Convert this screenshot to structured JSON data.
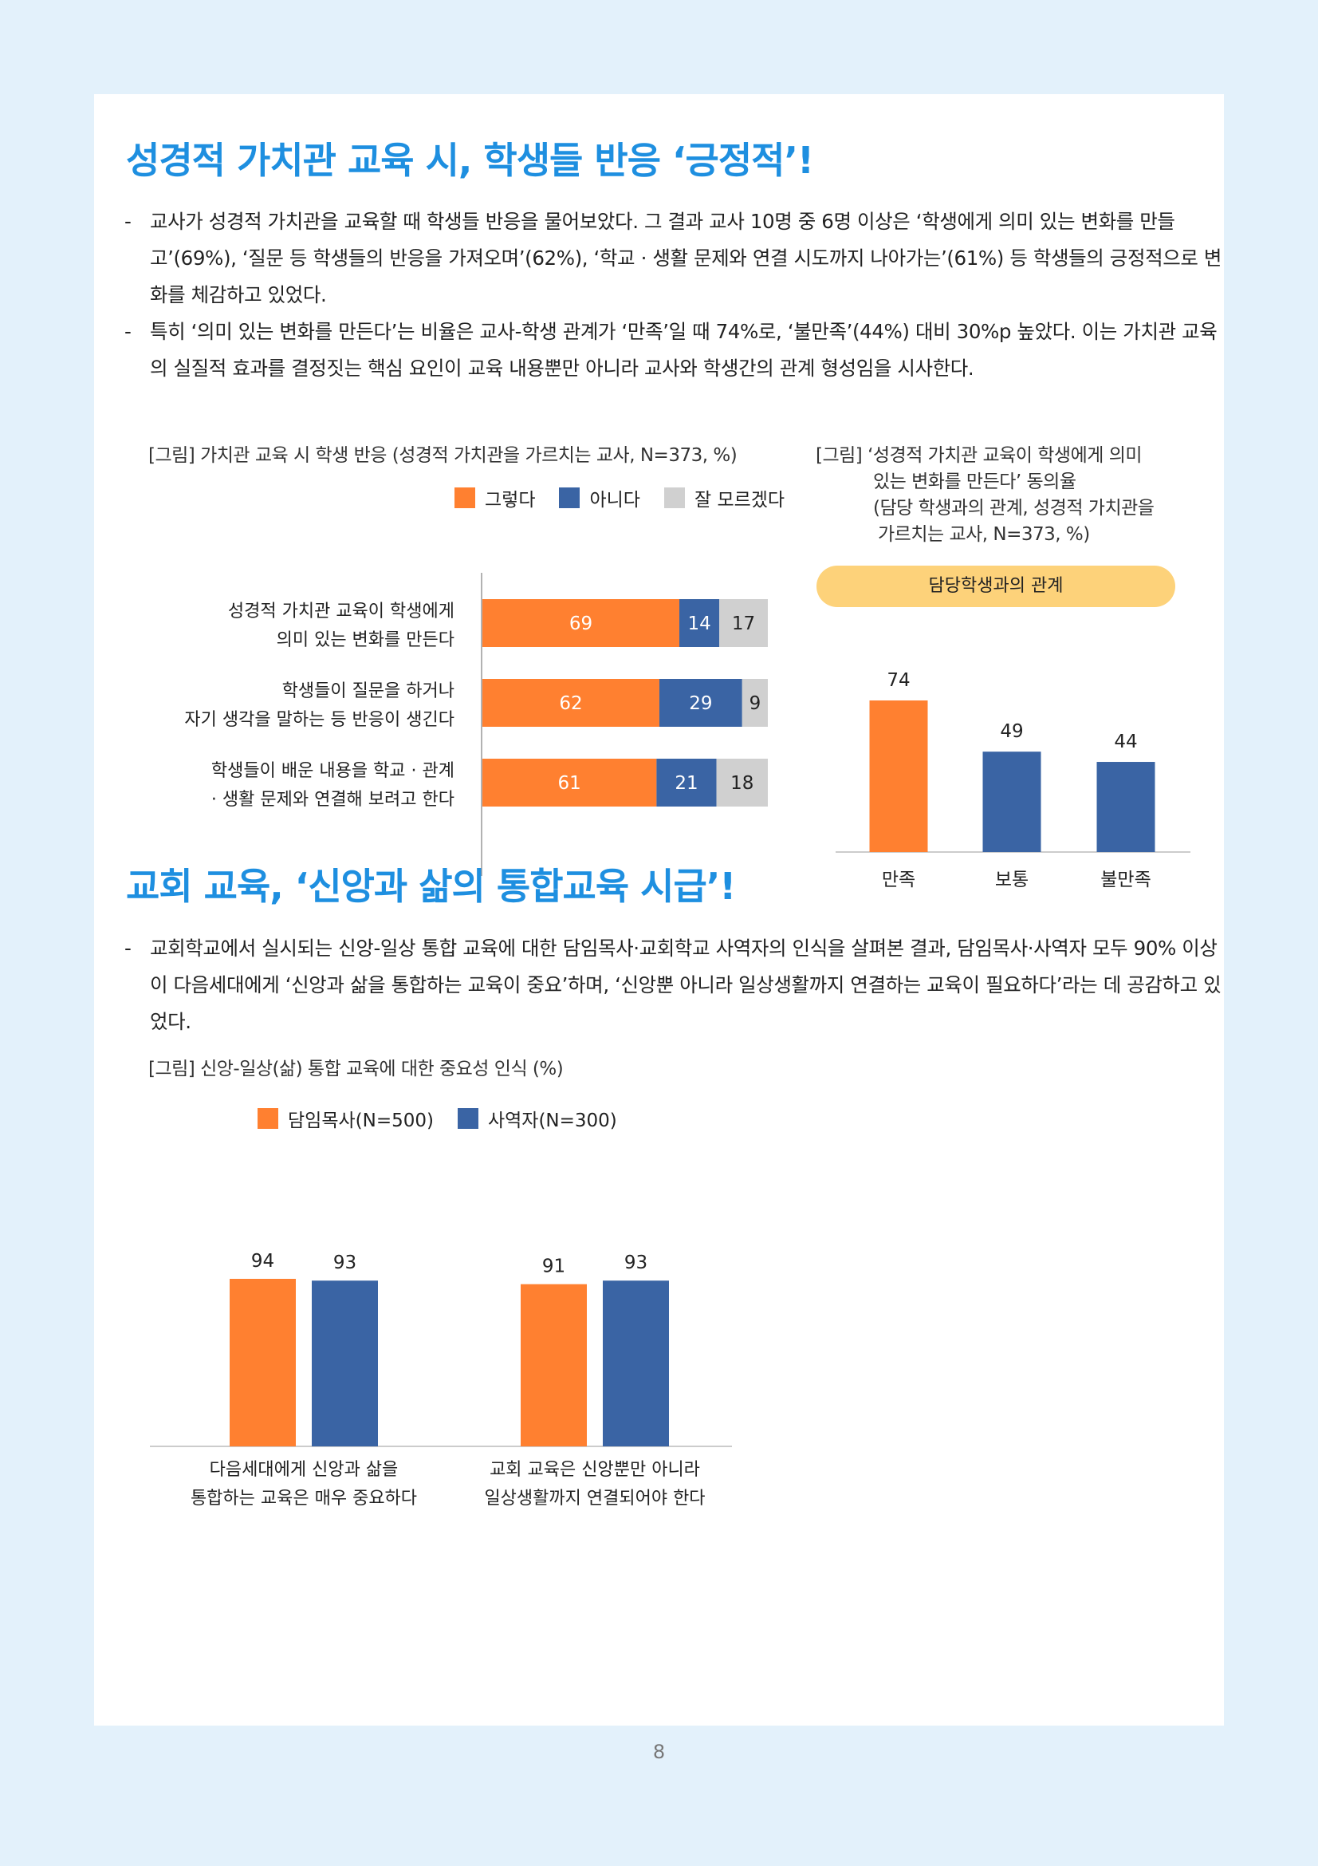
{
  "section1": {
    "heading": "성경적 가치관 교육 시, 학생들 반응 ‘긍정적’!",
    "bullets": [
      "교사가 성경적 가치관을 교육할 때 학생들 반응을 물어보았다. 그 결과 교사 10명 중 6명 이상은 ‘학생에게 의미 있는 변화를 만들고’(69%), ‘질문 등 학생들의 반응을 가져오며’(62%), ‘학교 · 생활 문제와 연결 시도까지 나아가는’(61%) 등 학생들의 긍정적으로 변화를 체감하고 있었다.",
      "특히 ‘의미 있는 변화를 만든다’는 비율은 교사-학생 관계가 ‘만족’일 때 74%로, ‘불만족’(44%) 대비 30%p 높았다. 이는 가치관 교육의 실질적 효과를 결정짓는 핵심 요인이 교육 내용뿐만 아니라 교사와 학생간의 관계 형성임을 시사한다."
    ]
  },
  "section2": {
    "heading": "교회 교육, ‘신앙과 삶의 통합교육 시급’!",
    "bullets": [
      "교회학교에서 실시되는 신앙-일상 통합 교육에 대한 담임목사·교회학교 사역자의 인식을 살펴본 결과, 담임목사·사역자 모두 90% 이상이 다음세대에게 ‘신앙과 삶을 통합하는 교육이 중요’하며, ‘신앙뿐 아니라 일상생활까지 연결하는 교육이 필요하다’라는 데 공감하고 있었다."
    ]
  },
  "page_number": "8",
  "colors": {
    "orange": "#ff8030",
    "blue": "#3a64a4",
    "gray": "#d0d0d0",
    "heading": "#1e8fe0",
    "pill": "#fdd27a"
  },
  "chart_data": [
    {
      "type": "bar",
      "orientation": "horizontal-stacked",
      "title": "[그림] 가치관 교육 시 학생 반응 (성경적 가치관을 가르치는 교사, N=373, %)",
      "categories": [
        [
          "성경적 가치관 교육이 학생에게",
          "의미 있는 변화를 만든다"
        ],
        [
          "학생들이 질문을 하거나",
          "자기 생각을 말하는 등 반응이 생긴다"
        ],
        [
          "학생들이 배운 내용을 학교 · 관계",
          "· 생활 문제와 연결해 보려고 한다"
        ]
      ],
      "series": [
        {
          "name": "그렇다",
          "color": "#ff8030",
          "values": [
            69,
            62,
            61
          ]
        },
        {
          "name": "아니다",
          "color": "#3a64a4",
          "values": [
            14,
            29,
            21
          ]
        },
        {
          "name": "잘 모르겠다",
          "color": "#d0d0d0",
          "values": [
            17,
            9,
            18
          ]
        }
      ],
      "xlim": [
        0,
        100
      ],
      "legend": "top-right"
    },
    {
      "type": "bar",
      "title": [
        "[그림] ‘성경적 가치관 교육이 학생에게 의미",
        "있는 변화를 만든다’ 동의율",
        "(담당 학생과의 관계, 성경적 가치관을",
        "가르치는 교사, N=373, %)"
      ],
      "group_label": "담당학생과의 관계",
      "categories": [
        "만족",
        "보통",
        "불만족"
      ],
      "values": [
        74,
        49,
        44
      ],
      "colors": [
        "#ff8030",
        "#3a64a4",
        "#3a64a4"
      ],
      "ylim": [
        0,
        100
      ]
    },
    {
      "type": "bar",
      "title": "[그림] 신앙-일상(삶) 통합 교육에 대한 중요성 인식 (%)",
      "categories": [
        [
          "다음세대에게 신앙과 삶을",
          "통합하는 교육은 매우 중요하다"
        ],
        [
          "교회 교육은 신앙뿐만 아니라",
          "일상생활까지 연결되어야 한다"
        ]
      ],
      "series": [
        {
          "name": "담임목사(N=500)",
          "color": "#ff8030",
          "values": [
            94,
            91
          ]
        },
        {
          "name": "사역자(N=300)",
          "color": "#3a64a4",
          "values": [
            93,
            93
          ]
        }
      ],
      "ylim": [
        0,
        100
      ],
      "legend": "top-left"
    }
  ]
}
